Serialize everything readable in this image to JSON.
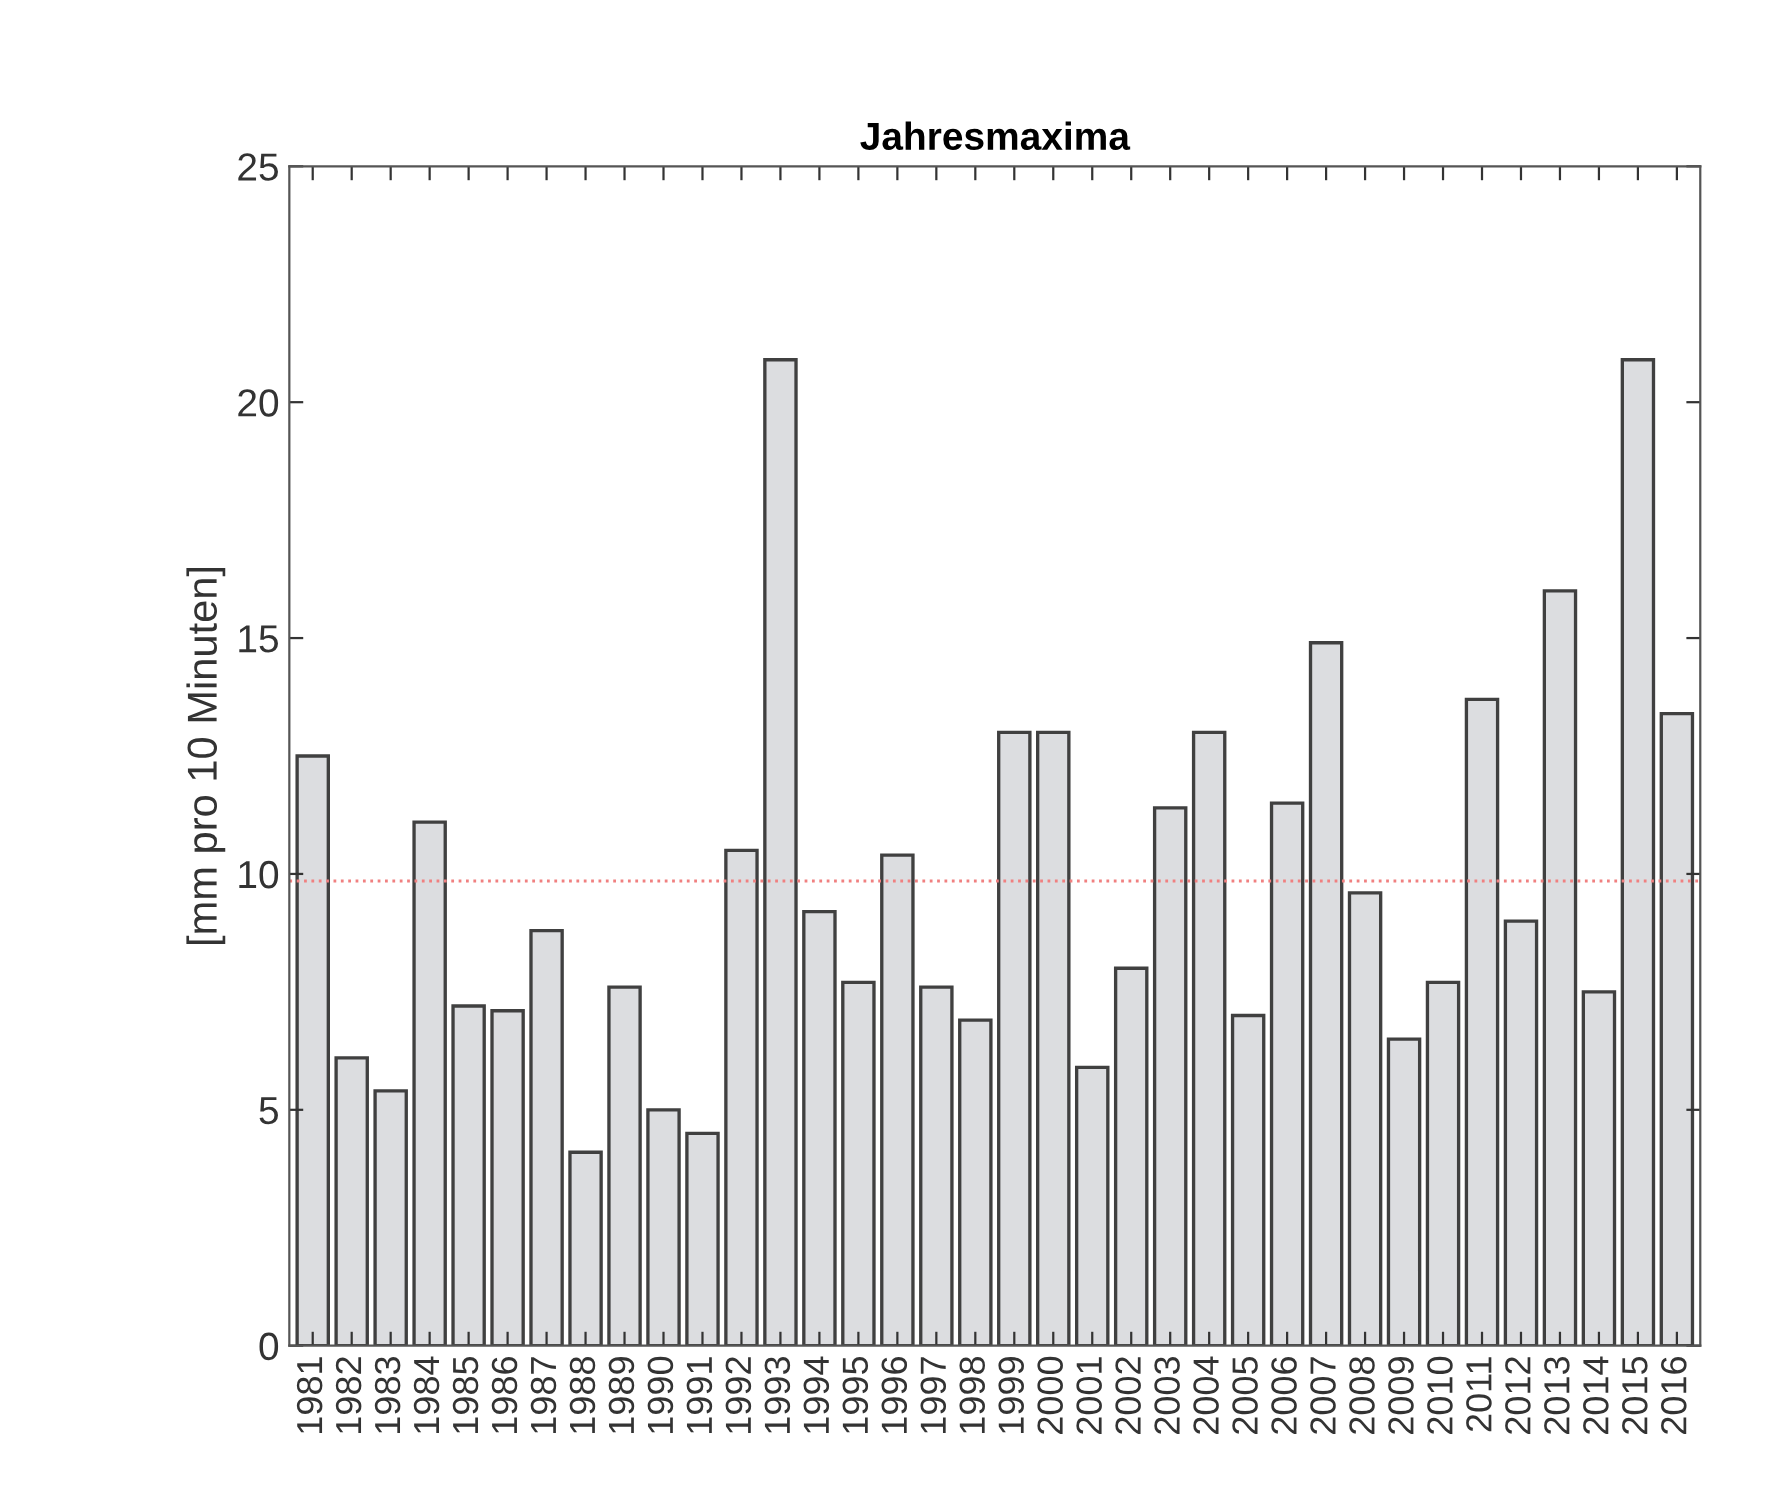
{
  "chart_data": {
    "type": "bar",
    "title": "Jahresmaxima",
    "ylabel": "[mm pro 10 Minuten]",
    "categories": [
      "1981",
      "1982",
      "1983",
      "1984",
      "1985",
      "1986",
      "1987",
      "1988",
      "1989",
      "1990",
      "1991",
      "1992",
      "1993",
      "1994",
      "1995",
      "1996",
      "1997",
      "1998",
      "1999",
      "2000",
      "2001",
      "2002",
      "2003",
      "2004",
      "2005",
      "2006",
      "2007",
      "2008",
      "2009",
      "2010",
      "2011",
      "2012",
      "2013",
      "2014",
      "2015",
      "2016"
    ],
    "values": [
      12.5,
      6.1,
      5.4,
      11.1,
      7.2,
      7.1,
      8.8,
      4.1,
      7.6,
      5.0,
      4.5,
      10.5,
      20.9,
      9.2,
      7.7,
      10.4,
      7.6,
      6.9,
      13.0,
      13.0,
      5.9,
      8.0,
      11.4,
      13.0,
      7.0,
      11.5,
      14.9,
      9.6,
      6.5,
      7.7,
      13.7,
      9.0,
      16.0,
      7.5,
      20.9,
      13.4
    ],
    "color": "#dcdde0",
    "ylim": [
      0,
      25
    ],
    "yticks": [
      0,
      5,
      10,
      15,
      20,
      25
    ],
    "grid": false,
    "legend": false,
    "ref_lines": [
      {
        "axis": "y",
        "value": 9.85,
        "color": "#f08080",
        "line_style": "dotted"
      }
    ]
  }
}
